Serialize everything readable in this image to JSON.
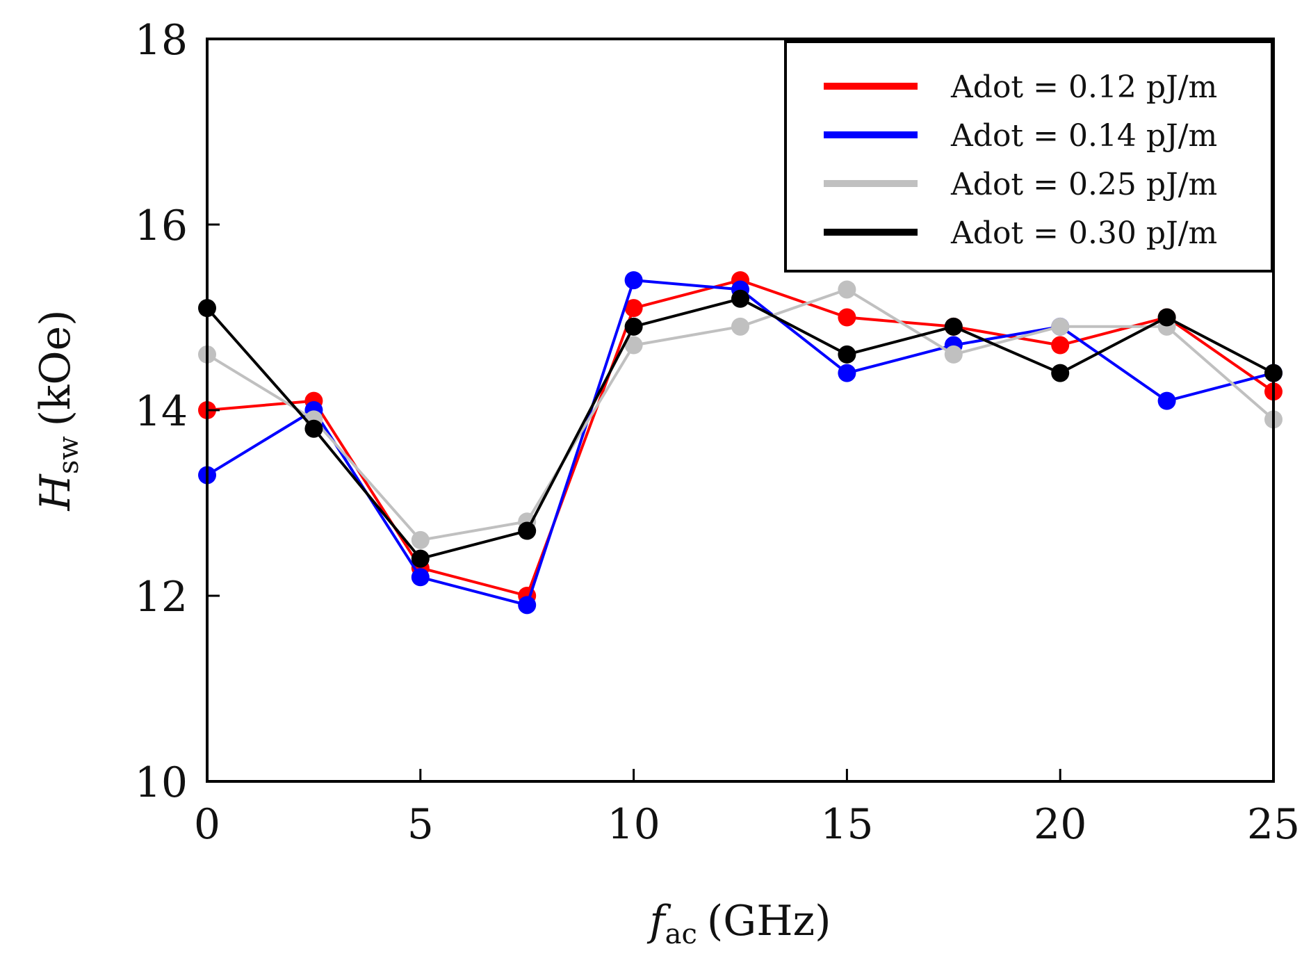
{
  "chart_data": {
    "type": "line",
    "title": "",
    "xlabel": {
      "main": "f",
      "sub": "ac",
      "unit": "(GHz)"
    },
    "ylabel": {
      "main": "H",
      "sub": "sw",
      "unit": "(kOe)"
    },
    "xlim": [
      0,
      25
    ],
    "ylim": [
      10,
      18
    ],
    "xticks": [
      "0",
      "5",
      "10",
      "15",
      "20",
      "25"
    ],
    "yticks": [
      "10",
      "12",
      "14",
      "16",
      "18"
    ],
    "grid": false,
    "legend_position": "top-right",
    "x": [
      0,
      2.5,
      5,
      7.5,
      10,
      12.5,
      15,
      17.5,
      20,
      22.5,
      25
    ],
    "series": [
      {
        "name": "Adot = 0.12 pJ/m",
        "color": "#ff0000",
        "values": [
          14.0,
          14.1,
          12.3,
          12.0,
          15.1,
          15.4,
          15.0,
          14.9,
          14.7,
          15.0,
          14.2
        ]
      },
      {
        "name": "Adot = 0.14 pJ/m",
        "color": "#0000ff",
        "values": [
          13.3,
          14.0,
          12.2,
          11.9,
          15.4,
          15.3,
          14.4,
          14.7,
          14.9,
          14.1,
          14.4
        ]
      },
      {
        "name": "Adot = 0.25 pJ/m",
        "color": "#c0c0c0",
        "values": [
          14.6,
          13.9,
          12.6,
          12.8,
          14.7,
          14.9,
          15.3,
          14.6,
          14.9,
          14.9,
          13.9
        ]
      },
      {
        "name": "Adot = 0.30 pJ/m",
        "color": "#000000",
        "values": [
          15.1,
          13.8,
          12.4,
          12.7,
          14.9,
          15.2,
          14.6,
          14.9,
          14.4,
          15.0,
          14.4
        ]
      }
    ]
  }
}
